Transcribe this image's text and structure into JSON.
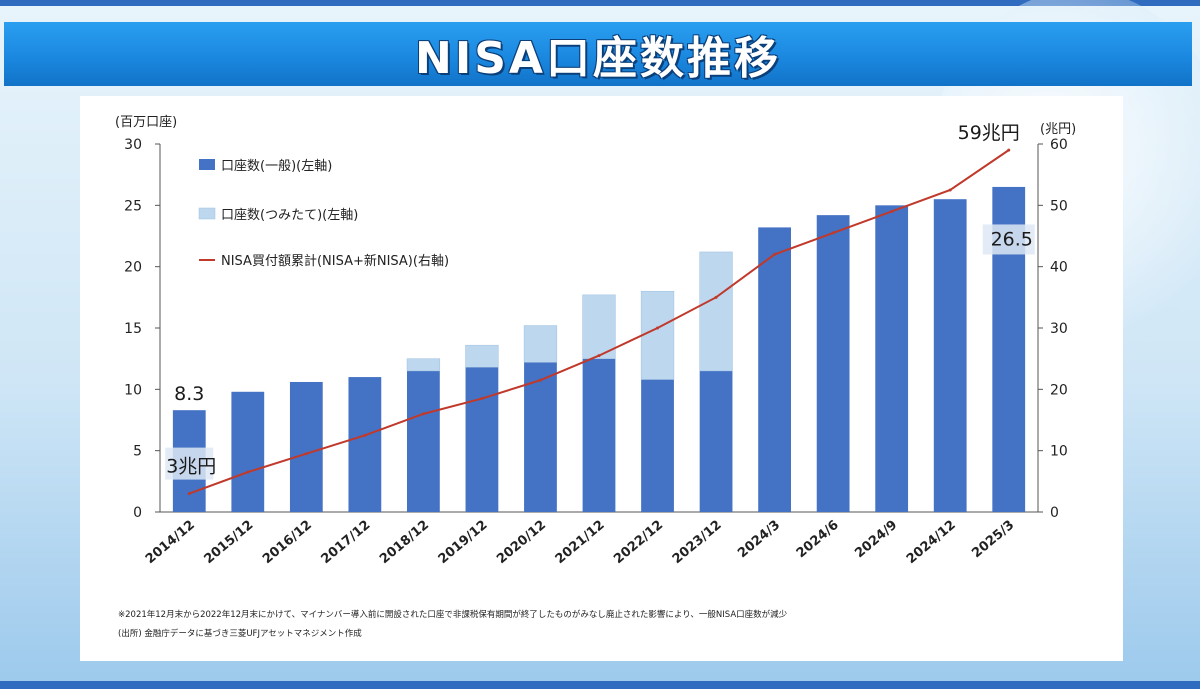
{
  "title": "NISA口座数推移",
  "chart_data": {
    "type": "bar",
    "categories": [
      "2014/12",
      "2015/12",
      "2016/12",
      "2017/12",
      "2018/12",
      "2019/12",
      "2020/12",
      "2021/12",
      "2022/12",
      "2023/12",
      "2024/3",
      "2024/6",
      "2024/9",
      "2024/12",
      "2025/3"
    ],
    "series": [
      {
        "name": "口座数(一般)(左軸)",
        "type": "bar",
        "axis": "left",
        "stacked": true,
        "color": "#4472c4",
        "values": [
          8.3,
          9.8,
          10.6,
          11.0,
          11.5,
          11.8,
          12.2,
          12.5,
          10.8,
          11.5,
          23.2,
          24.2,
          25.0,
          25.5,
          26.5
        ]
      },
      {
        "name": "口座数(つみたて)(左軸)",
        "type": "bar",
        "axis": "left",
        "stacked": true,
        "color": "#bdd7ee",
        "values": [
          0,
          0,
          0,
          0,
          1.0,
          1.8,
          3.0,
          5.2,
          7.2,
          9.7,
          0,
          0,
          0,
          0,
          0
        ]
      },
      {
        "name": "NISA買付額累計(NISA+新NISA)(右軸)",
        "type": "line",
        "axis": "right",
        "color": "#c0392b",
        "values": [
          3,
          6.5,
          9.5,
          12.5,
          16,
          18.5,
          21.5,
          25.5,
          30,
          35,
          42,
          45.5,
          49,
          52.5,
          59
        ]
      }
    ],
    "left_axis": {
      "label": "(百万口座)",
      "min": 0,
      "max": 30,
      "ticks": [
        "0",
        "5",
        "10",
        "15",
        "20",
        "25",
        "30"
      ]
    },
    "right_axis": {
      "label": "(兆円)",
      "min": 0,
      "max": 60,
      "ticks": [
        "0",
        "10",
        "20",
        "30",
        "40",
        "50",
        "60"
      ]
    },
    "annotations": {
      "first_bar": "8.3",
      "first_line": "3兆円",
      "last_bar": "26.5",
      "last_line": "59兆円"
    },
    "legend_position": "top-left",
    "grid": false
  },
  "footnotes": {
    "note": "※2021年12月末から2022年12月末にかけて、マイナンバー導入前に開設された口座で非課税保有期間が終了したものがみなし廃止された影響により、一般NISA口座数が減少",
    "source": "(出所) 金融庁データに基づき三菱UFJアセットマネジメント作成"
  }
}
